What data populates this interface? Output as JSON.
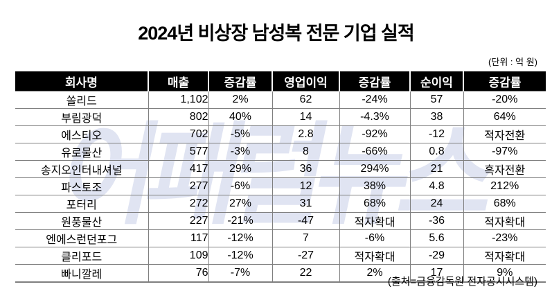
{
  "title": "2024년 비상장 남성복 전문 기업 실적",
  "unit_note": "(단위 : 억 원)",
  "source_note": "(출처=금융감독원 전자공시시스템)",
  "watermark": "어패럴뉴스",
  "colors": {
    "background": "#ffffff",
    "text": "#000000",
    "header_bg": "#000000",
    "header_text": "#ffffff",
    "grid": "#7f7f7f",
    "watermark": "#e0e4f2"
  },
  "table": {
    "columns": [
      "회사명",
      "매출",
      "증감률",
      "영업이익",
      "증감률",
      "순이익",
      "증감률"
    ],
    "rows": [
      [
        "쏠리드",
        "1,102",
        "2%",
        "62",
        "-24%",
        "57",
        "-20%"
      ],
      [
        "부림광덕",
        "802",
        "40%",
        "14",
        "-4.3%",
        "38",
        "64%"
      ],
      [
        "에스티오",
        "702",
        "-5%",
        "2.8",
        "-92%",
        "-12",
        "적자전환"
      ],
      [
        "유로물산",
        "577",
        "-3%",
        "8",
        "-66%",
        "0.8",
        "-97%"
      ],
      [
        "송지오인터내셔널",
        "417",
        "29%",
        "36",
        "294%",
        "21",
        "흑자전환"
      ],
      [
        "파스토조",
        "277",
        "-6%",
        "12",
        "38%",
        "4.8",
        "212%"
      ],
      [
        "포터리",
        "272",
        "27%",
        "31",
        "68%",
        "24",
        "68%"
      ],
      [
        "원풍물산",
        "227",
        "-21%",
        "-47",
        "적자확대",
        "-36",
        "적자확대"
      ],
      [
        "엔에스런던포그",
        "117",
        "-12%",
        "7",
        "-6%",
        "5.6",
        "-23%"
      ],
      [
        "클리포드",
        "109",
        "-12%",
        "-27",
        "적자확대",
        "-29",
        "적자확대"
      ],
      [
        "빠니깔레",
        "76",
        "-7%",
        "22",
        "2%",
        "17",
        "9%"
      ]
    ]
  }
}
